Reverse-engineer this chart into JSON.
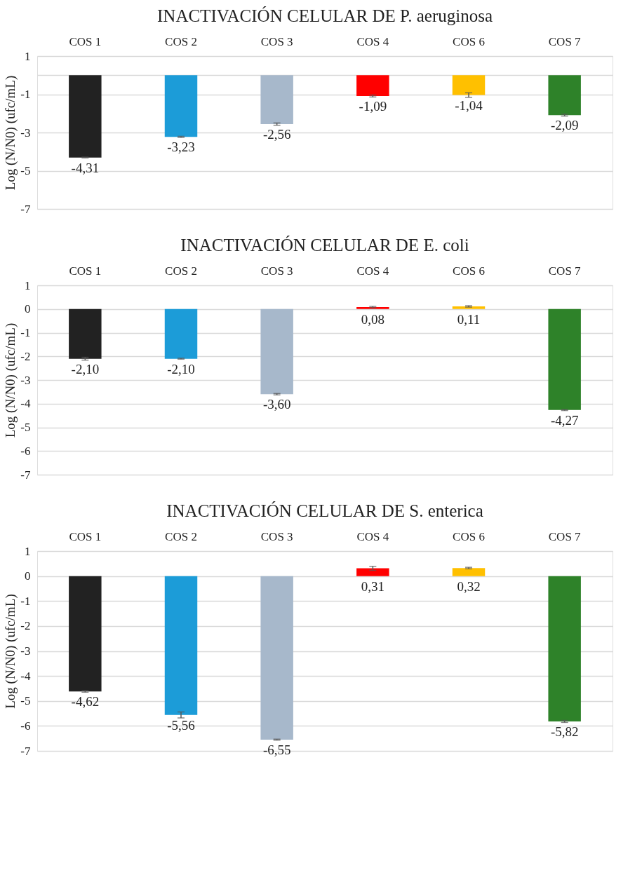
{
  "chart_data": [
    {
      "type": "bar",
      "title": "INACTIVACIÓN CELULAR DE P. aeruginosa",
      "ylabel": "Log (N/N0)  (ufc/mL)",
      "categories": [
        "COS 1",
        "COS 2",
        "COS 3",
        "COS 4",
        "COS 6",
        "COS 7"
      ],
      "values": [
        -4.31,
        -3.23,
        -2.56,
        -1.09,
        -1.04,
        -2.09
      ],
      "value_labels": [
        "-4,31",
        "-3,23",
        "-2,56",
        "-1,09",
        "-1,04",
        "-2,09"
      ],
      "errors": [
        0.02,
        0.03,
        0.06,
        0.05,
        0.12,
        0.05
      ],
      "colors": [
        "#222222",
        "#1c9cd8",
        "#a7b8cb",
        "#ff0000",
        "#ffc000",
        "#2e8229"
      ],
      "ylim": [
        -7,
        1
      ],
      "yticks": [
        1,
        {
          "value": 0,
          "label": null
        },
        -1,
        -3,
        -5,
        -7
      ],
      "grid": "y"
    },
    {
      "type": "bar",
      "title": "INACTIVACIÓN CELULAR DE E. coli",
      "ylabel": "Log (N/N0)  (ufc/mL)",
      "categories": [
        "COS 1",
        "COS 2",
        "COS 3",
        "COS 4",
        "COS 6",
        "COS 7"
      ],
      "values": [
        -2.1,
        -2.1,
        -3.6,
        0.08,
        0.11,
        -4.27
      ],
      "value_labels": [
        "-2,10",
        "-2,10",
        "-3,60",
        "0,08",
        "0,11",
        "-4,27"
      ],
      "errors": [
        0.06,
        0.02,
        0.03,
        0.03,
        0.03,
        0.02
      ],
      "colors": [
        "#222222",
        "#1c9cd8",
        "#a7b8cb",
        "#ff0000",
        "#ffc000",
        "#2e8229"
      ],
      "ylim": [
        -7,
        1
      ],
      "yticks": [
        1,
        0,
        -1,
        -2,
        -3,
        -4,
        -5,
        -6,
        -7
      ],
      "grid": "y"
    },
    {
      "type": "bar",
      "title": "INACTIVACIÓN CELULAR DE S. enterica",
      "ylabel": "Log (N/N0)  (ufc/mL)",
      "categories": [
        "COS 1",
        "COS 2",
        "COS 3",
        "COS 4",
        "COS 6",
        "COS 7"
      ],
      "values": [
        -4.62,
        -5.56,
        -6.55,
        0.31,
        0.32,
        -5.82
      ],
      "value_labels": [
        "-4,62",
        "-5,56",
        "-6,55",
        "0,31",
        "0,32",
        "-5,82"
      ],
      "errors": [
        0.03,
        0.12,
        0.02,
        0.08,
        0.03,
        0.04
      ],
      "colors": [
        "#222222",
        "#1c9cd8",
        "#a7b8cb",
        "#ff0000",
        "#ffc000",
        "#2e8229"
      ],
      "ylim": [
        -7,
        1
      ],
      "yticks": [
        1,
        0,
        -1,
        -2,
        -3,
        -4,
        -5,
        -6,
        -7
      ],
      "grid": "y"
    }
  ]
}
